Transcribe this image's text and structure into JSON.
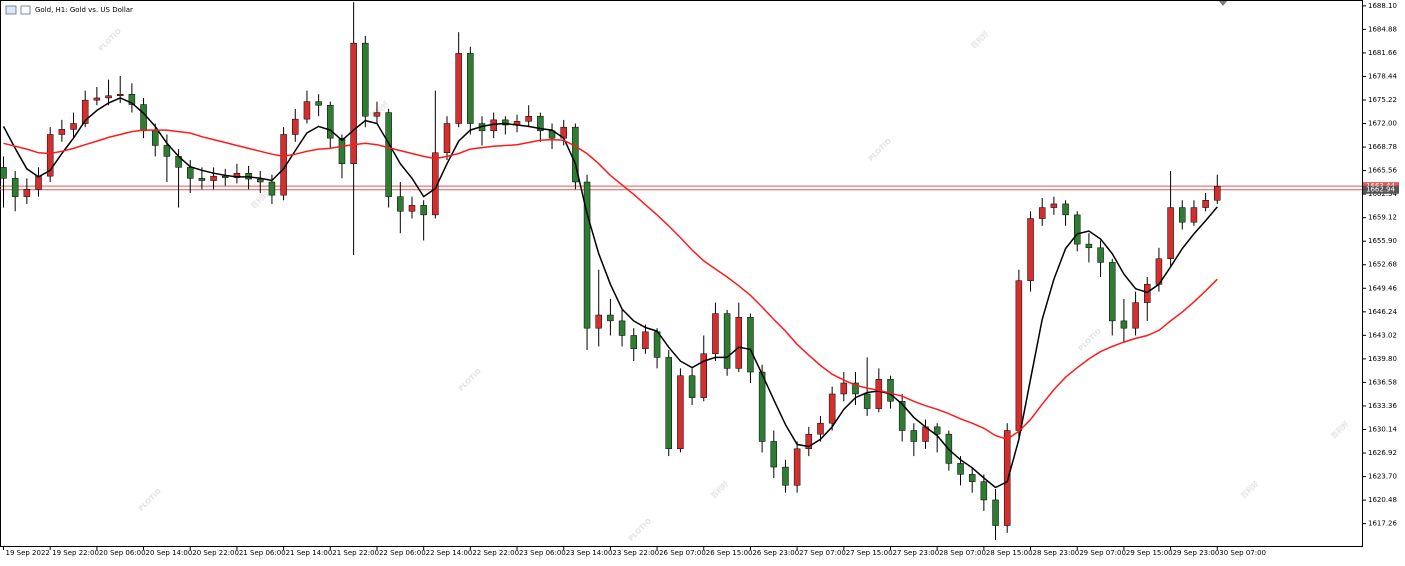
{
  "chart_data": {
    "type": "candlestick",
    "title": "Gold, H1: Gold vs. US Dollar",
    "watermark": {
      "brand": "PLOTIO",
      "local": "百利好"
    },
    "up_color": "#d32f2f",
    "down_color": "#2e7d32",
    "ylim": [
      1614.2,
      1688.9
    ],
    "xlim": [
      -0.3,
      116.4
    ],
    "yticks": [
      {
        "value": 1688.1,
        "label": "1688.10"
      },
      1684.88,
      1681.66,
      1678.44,
      1675.22,
      {
        "value": 1672.0,
        "label": "1672.00"
      },
      1668.78,
      1665.56,
      1662.34,
      1659.12,
      {
        "value": 1655.9,
        "label": "1655.90"
      },
      1652.68,
      1649.46,
      1646.24,
      1643.02,
      {
        "value": 1639.8,
        "label": "1639.80"
      },
      1636.58,
      1633.36,
      1630.14,
      1626.92,
      {
        "value": 1623.7,
        "label": "1623.70"
      },
      1620.48,
      1617.26
    ],
    "xticks": [
      {
        "value": 0,
        "label": "19 Sep 2022"
      },
      {
        "value": 4,
        "label": "19 Sep 22:00"
      },
      {
        "value": 8,
        "label": "20 Sep 06:00"
      },
      {
        "value": 12,
        "label": "20 Sep 14:00"
      },
      {
        "value": 16,
        "label": "20 Sep 22:00"
      },
      {
        "value": 20,
        "label": "21 Sep 06:00"
      },
      {
        "value": 24,
        "label": "21 Sep 14:00"
      },
      {
        "value": 28,
        "label": "21 Sep 22:00"
      },
      {
        "value": 32,
        "label": "22 Sep 06:00"
      },
      {
        "value": 36,
        "label": "22 Sep 14:00"
      },
      {
        "value": 40,
        "label": "22 Sep 22:00"
      },
      {
        "value": 44,
        "label": "23 Sep 06:00"
      },
      {
        "value": 48,
        "label": "23 Sep 14:00"
      },
      {
        "value": 52,
        "label": "23 Sep 22:00"
      },
      {
        "value": 56,
        "label": "26 Sep 07:00"
      },
      {
        "value": 60,
        "label": "26 Sep 15:00"
      },
      {
        "value": 64,
        "label": "26 Sep 23:00"
      },
      {
        "value": 68,
        "label": "27 Sep 07:00"
      },
      {
        "value": 72,
        "label": "27 Sep 15:00"
      },
      {
        "value": 76,
        "label": "27 Sep 23:00"
      },
      {
        "value": 80,
        "label": "28 Sep 07:00"
      },
      {
        "value": 84,
        "label": "28 Sep 15:00"
      },
      {
        "value": 88,
        "label": "28 Sep 23:00"
      },
      {
        "value": 92,
        "label": "29 Sep 07:00"
      },
      {
        "value": 96,
        "label": "29 Sep 15:00"
      },
      {
        "value": 100,
        "label": "29 Sep 23:00"
      },
      {
        "value": 104,
        "label": "30 Sep 07:00"
      }
    ],
    "open": [
      1666.0,
      1664.5,
      1662.0,
      1663.0,
      1664.8,
      1670.5,
      1671.2,
      1672.0,
      1675.2,
      1675.5,
      1675.8,
      1676.0,
      1674.6,
      1671.0,
      1669.0,
      1667.5,
      1666.0,
      1664.5,
      1664.2,
      1664.8,
      1664.6,
      1665.2,
      1664.4,
      1664.0,
      1662.2,
      1670.5,
      1672.6,
      1675.0,
      1674.5,
      1670.0,
      1666.5,
      1683.0,
      1673.0,
      1673.5,
      1662.0,
      1660.0,
      1660.8,
      1659.5,
      1668.0,
      1672.0,
      1681.6,
      1672.0,
      1671.0,
      1672.5,
      1671.8,
      1672.3,
      1673.0,
      1671.0,
      1670.0,
      1671.5,
      1664.0,
      1644.0,
      1645.8,
      1645.0,
      1643.0,
      1641.2,
      1643.5,
      1640.0,
      1627.5,
      1637.5,
      1634.5,
      1640.5,
      1646.0,
      1638.5,
      1645.5,
      1638.0,
      1628.5,
      1625.0,
      1622.5,
      1627.5,
      1629.5,
      1631.0,
      1635.0,
      1636.5,
      1635.0,
      1633.0,
      1637.0,
      1634.0,
      1630.0,
      1628.5,
      1630.5,
      1629.5,
      1625.5,
      1624.0,
      1623.0,
      1620.5,
      1617.0,
      1630.0,
      1650.5,
      1659.0,
      1660.5,
      1661.0,
      1659.5,
      1655.5,
      1655.0,
      1653.0,
      1645.0,
      1644.0,
      1647.5,
      1650.0,
      1653.5,
      1660.5,
      1658.5,
      1660.5,
      1661.5
    ],
    "high": [
      1667.5,
      1665.5,
      1664.5,
      1666.0,
      1671.5,
      1672.5,
      1673.5,
      1676.5,
      1677.0,
      1678.0,
      1678.5,
      1677.5,
      1675.5,
      1672.0,
      1670.5,
      1668.5,
      1667.0,
      1666.0,
      1666.0,
      1665.8,
      1666.5,
      1666.2,
      1665.5,
      1665.0,
      1671.5,
      1674.0,
      1676.5,
      1676.0,
      1675.0,
      1670.5,
      1688.6,
      1684.0,
      1675.0,
      1674.0,
      1664.0,
      1662.0,
      1661.5,
      1676.5,
      1673.0,
      1684.5,
      1682.5,
      1673.0,
      1673.5,
      1673.0,
      1673.2,
      1674.5,
      1673.5,
      1672.0,
      1672.5,
      1672.0,
      1665.0,
      1652.0,
      1648.0,
      1646.5,
      1644.0,
      1644.5,
      1644.0,
      1641.0,
      1638.5,
      1638.5,
      1643.0,
      1647.5,
      1646.5,
      1647.5,
      1646.0,
      1639.0,
      1630.0,
      1626.0,
      1628.5,
      1630.5,
      1632.0,
      1636.0,
      1638.0,
      1638.0,
      1640.0,
      1638.5,
      1637.5,
      1635.0,
      1631.0,
      1631.5,
      1631.0,
      1630.0,
      1626.5,
      1625.0,
      1624.0,
      1622.0,
      1631.0,
      1652.0,
      1660.0,
      1661.8,
      1662.0,
      1661.5,
      1660.0,
      1657.0,
      1656.0,
      1653.5,
      1648.0,
      1649.0,
      1651.0,
      1655.0,
      1665.5,
      1661.5,
      1661.5,
      1662.5,
      1665.0
    ],
    "low": [
      1660.5,
      1660.0,
      1661.0,
      1662.0,
      1664.0,
      1669.5,
      1670.0,
      1671.5,
      1674.5,
      1674.5,
      1674.8,
      1673.5,
      1670.0,
      1667.5,
      1664.0,
      1660.5,
      1662.5,
      1663.0,
      1663.0,
      1663.5,
      1663.8,
      1663.0,
      1662.5,
      1661.0,
      1661.5,
      1669.5,
      1672.0,
      1673.0,
      1668.5,
      1664.5,
      1654.0,
      1671.5,
      1672.0,
      1660.5,
      1657.0,
      1659.0,
      1656.0,
      1659.0,
      1667.0,
      1671.5,
      1670.5,
      1669.0,
      1670.0,
      1670.5,
      1670.8,
      1671.5,
      1669.5,
      1668.5,
      1669.0,
      1663.0,
      1641.0,
      1641.5,
      1643.0,
      1641.5,
      1639.5,
      1640.5,
      1638.5,
      1626.5,
      1627.0,
      1633.5,
      1634.0,
      1639.5,
      1637.5,
      1638.0,
      1636.5,
      1627.0,
      1623.5,
      1621.5,
      1621.5,
      1626.5,
      1628.5,
      1630.0,
      1634.0,
      1633.5,
      1632.0,
      1632.5,
      1633.0,
      1628.5,
      1626.5,
      1627.5,
      1627.0,
      1624.5,
      1622.5,
      1621.5,
      1619.0,
      1615.0,
      1616.0,
      1629.0,
      1649.0,
      1658.0,
      1659.5,
      1658.0,
      1654.5,
      1653.0,
      1651.0,
      1643.0,
      1642.0,
      1643.0,
      1645.0,
      1649.0,
      1652.5,
      1657.5,
      1658.0,
      1660.0,
      1661.0
    ],
    "close": [
      1664.5,
      1662.0,
      1663.0,
      1664.8,
      1670.5,
      1671.2,
      1672.0,
      1675.2,
      1675.5,
      1675.8,
      1676.0,
      1674.6,
      1671.0,
      1669.0,
      1667.5,
      1666.0,
      1664.5,
      1664.2,
      1664.8,
      1664.6,
      1665.2,
      1664.4,
      1664.0,
      1662.2,
      1670.5,
      1672.6,
      1675.0,
      1674.5,
      1670.0,
      1666.5,
      1683.0,
      1673.0,
      1673.5,
      1662.0,
      1660.0,
      1660.8,
      1659.5,
      1668.0,
      1672.0,
      1681.6,
      1672.0,
      1671.0,
      1672.5,
      1671.8,
      1672.3,
      1673.0,
      1671.0,
      1670.0,
      1671.5,
      1664.0,
      1644.0,
      1645.8,
      1645.0,
      1643.0,
      1641.2,
      1643.5,
      1640.0,
      1627.5,
      1637.5,
      1634.5,
      1640.5,
      1646.0,
      1638.5,
      1645.5,
      1638.0,
      1628.5,
      1625.0,
      1622.5,
      1627.5,
      1629.5,
      1631.0,
      1635.0,
      1636.5,
      1635.0,
      1633.0,
      1637.0,
      1634.0,
      1630.0,
      1628.5,
      1630.5,
      1629.5,
      1625.5,
      1624.0,
      1623.0,
      1620.5,
      1617.0,
      1630.0,
      1650.5,
      1659.0,
      1660.5,
      1661.0,
      1659.5,
      1655.5,
      1655.0,
      1653.0,
      1645.0,
      1644.0,
      1647.5,
      1650.0,
      1653.5,
      1660.5,
      1658.5,
      1660.5,
      1661.5,
      1663.4
    ],
    "ma_lines": [
      {
        "color": "#000000",
        "values": [
          1671.6,
          1668.6,
          1665.8,
          1664.7,
          1665.6,
          1667.9,
          1670.0,
          1672.4,
          1673.8,
          1674.8,
          1675.5,
          1674.8,
          1673.4,
          1671.6,
          1669.3,
          1667.5,
          1666.1,
          1665.6,
          1665.2,
          1664.9,
          1664.7,
          1664.7,
          1664.5,
          1664.2,
          1665.8,
          1668.3,
          1670.7,
          1671.6,
          1671.1,
          1669.7,
          1671.1,
          1672.4,
          1672.0,
          1669.3,
          1666.5,
          1664.5,
          1662.0,
          1663.1,
          1666.5,
          1669.6,
          1671.1,
          1671.6,
          1671.9,
          1672.0,
          1671.8,
          1671.6,
          1671.3,
          1671.1,
          1670.0,
          1666.5,
          1659.7,
          1654.2,
          1650.0,
          1646.6,
          1645.0,
          1644.1,
          1643.6,
          1641.4,
          1639.5,
          1638.6,
          1639.5,
          1640.0,
          1640.0,
          1641.4,
          1641.1,
          1637.7,
          1634.2,
          1630.8,
          1628.1,
          1627.8,
          1628.8,
          1630.5,
          1632.9,
          1634.5,
          1635.2,
          1635.4,
          1635.0,
          1633.6,
          1631.8,
          1630.5,
          1629.3,
          1627.4,
          1626.0,
          1624.9,
          1623.5,
          1622.2,
          1623.0,
          1628.8,
          1637.0,
          1645.2,
          1650.7,
          1654.9,
          1656.9,
          1657.3,
          1656.2,
          1654.2,
          1651.4,
          1649.4,
          1648.9,
          1650.0,
          1652.4,
          1654.9,
          1656.9,
          1658.7,
          1660.6
        ]
      },
      {
        "color": "#ff1a1a",
        "values": [
          1669.3,
          1668.9,
          1668.5,
          1668.0,
          1667.9,
          1668.2,
          1668.6,
          1669.1,
          1669.6,
          1670.1,
          1670.5,
          1670.9,
          1671.1,
          1671.1,
          1671.1,
          1670.9,
          1670.7,
          1670.2,
          1669.8,
          1669.4,
          1669.0,
          1668.6,
          1668.2,
          1667.8,
          1667.5,
          1667.8,
          1668.2,
          1668.5,
          1668.6,
          1668.9,
          1669.1,
          1669.3,
          1669.1,
          1668.7,
          1668.3,
          1667.9,
          1667.5,
          1667.2,
          1667.5,
          1667.9,
          1668.5,
          1668.7,
          1668.9,
          1669.0,
          1669.1,
          1669.4,
          1669.7,
          1669.8,
          1669.7,
          1668.9,
          1667.9,
          1666.5,
          1664.9,
          1663.6,
          1662.3,
          1660.9,
          1659.5,
          1658.0,
          1656.4,
          1654.7,
          1653.2,
          1652.1,
          1651.0,
          1649.8,
          1648.5,
          1646.9,
          1645.2,
          1643.6,
          1641.8,
          1640.3,
          1638.9,
          1637.7,
          1636.9,
          1636.2,
          1635.8,
          1635.5,
          1635.1,
          1634.7,
          1634.0,
          1633.4,
          1632.9,
          1632.3,
          1631.6,
          1631.0,
          1630.3,
          1629.3,
          1628.8,
          1629.9,
          1631.5,
          1633.6,
          1635.6,
          1637.3,
          1638.6,
          1639.8,
          1640.8,
          1641.5,
          1642.1,
          1642.6,
          1643.0,
          1643.7,
          1645.0,
          1646.2,
          1647.6,
          1649.1,
          1650.7
        ]
      }
    ],
    "price_lines": [
      1663.44,
      1662.94
    ],
    "price_line_color": "#e05a5a"
  }
}
